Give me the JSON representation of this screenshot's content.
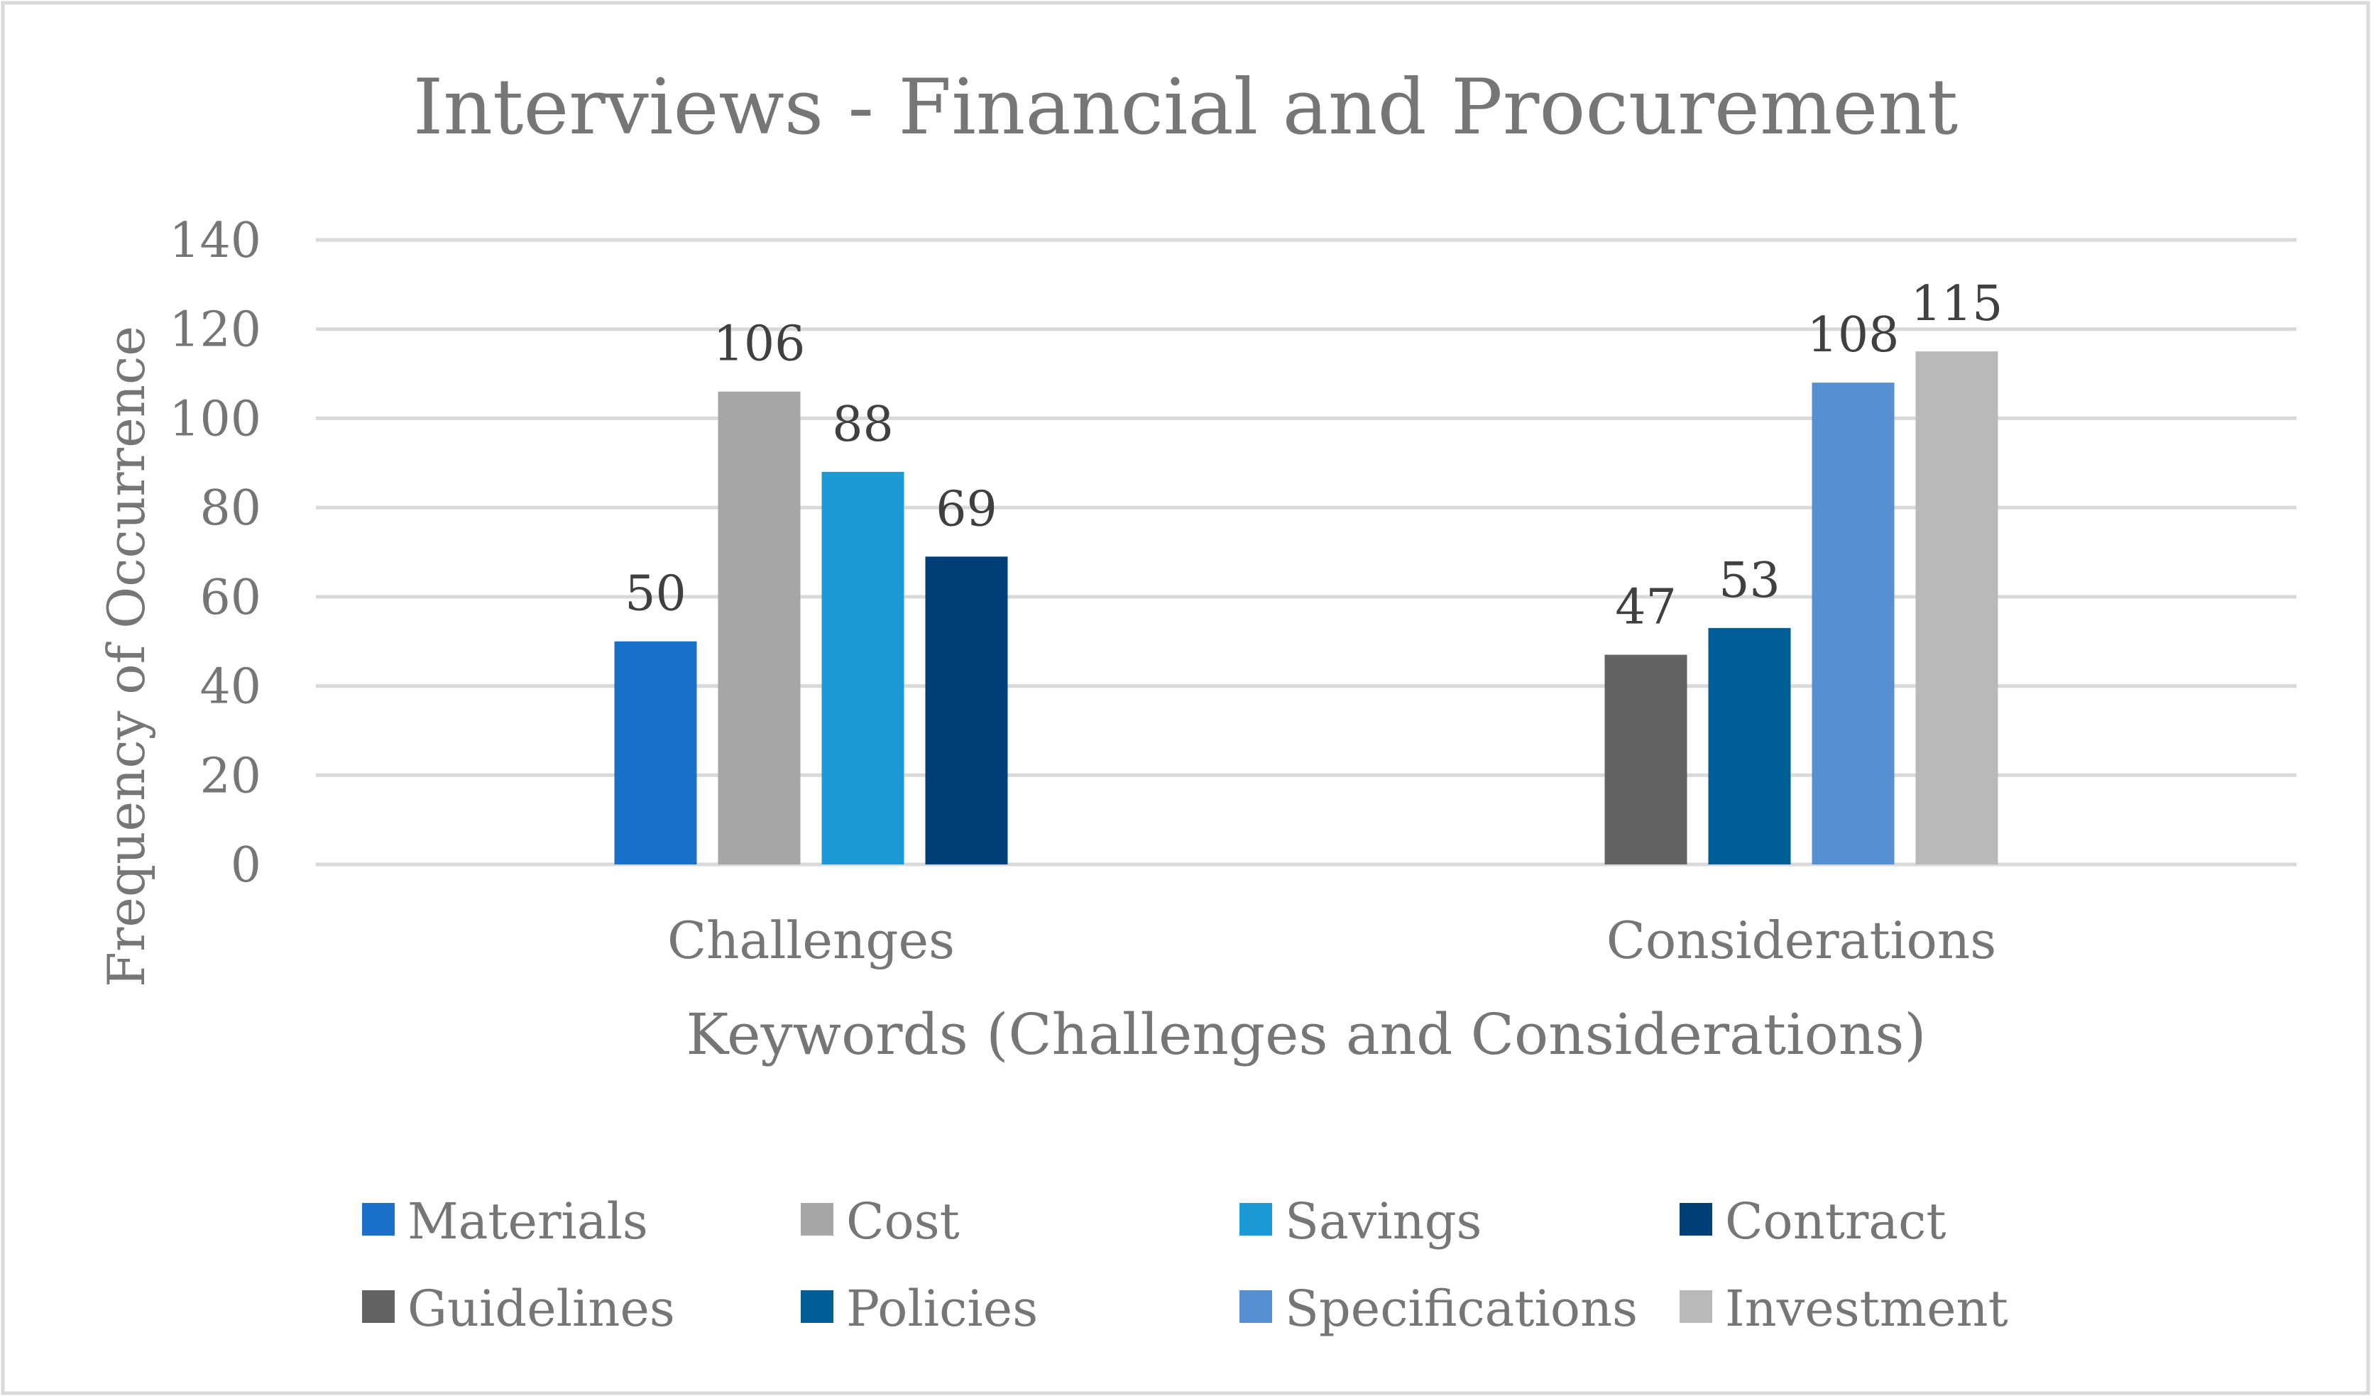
{
  "chart_data": {
    "type": "bar",
    "title": "Interviews - Financial and Procurement",
    "xlabel": "Keywords (Challenges and Considerations)",
    "ylabel": "Frequency of Occurrence",
    "ylim": [
      0,
      140
    ],
    "yticks": [
      0,
      20,
      40,
      60,
      80,
      100,
      120,
      140
    ],
    "grid": true,
    "legend_position": "bottom",
    "categories": [
      "Challenges",
      "Considerations"
    ],
    "series": [
      {
        "name": "Materials",
        "color": "#1a70c8",
        "values": [
          50,
          null
        ]
      },
      {
        "name": "Cost",
        "color": "#a6a6a6",
        "values": [
          106,
          null
        ]
      },
      {
        "name": "Savings",
        "color": "#1d9ad6",
        "values": [
          88,
          null
        ]
      },
      {
        "name": "Contract",
        "color": "#003f78",
        "values": [
          69,
          null
        ]
      },
      {
        "name": "Guidelines",
        "color": "#636363",
        "values": [
          null,
          47
        ]
      },
      {
        "name": "Policies",
        "color": "#005e96",
        "values": [
          null,
          53
        ]
      },
      {
        "name": "Specifications",
        "color": "#5590d3",
        "values": [
          null,
          108
        ]
      },
      {
        "name": "Investment",
        "color": "#b9b9b9",
        "values": [
          null,
          115
        ]
      }
    ]
  },
  "colors": {
    "text": "#767676",
    "label": "#404040",
    "grid": "#d9d9d9",
    "frame": "#d9d9d9",
    "background": "#ffffff"
  }
}
